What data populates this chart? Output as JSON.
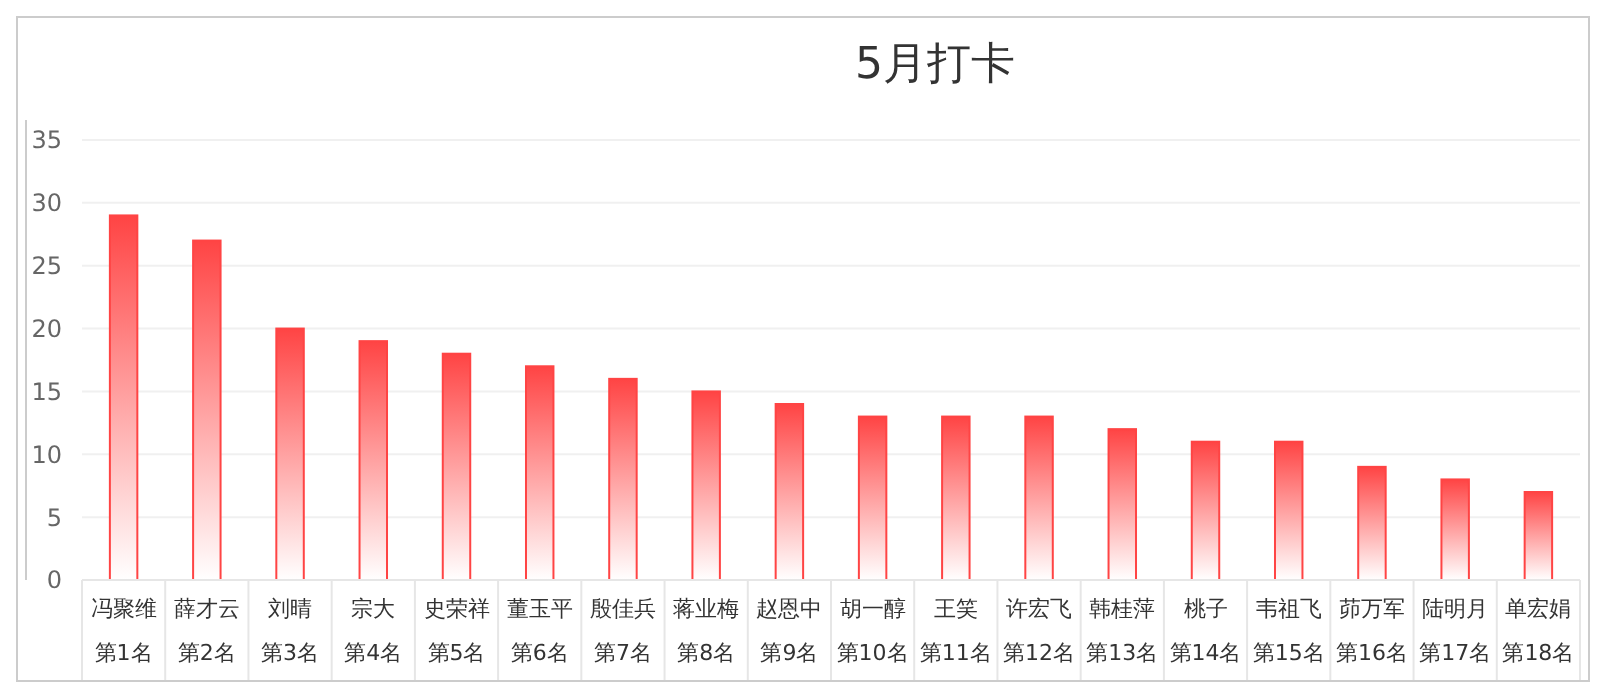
{
  "chart_data": {
    "type": "bar",
    "title": "5月打卡",
    "categories": [
      "冯聚维第1名",
      "薛才云第2名",
      "刘晴第3名",
      "宗大第4名",
      "史荣祥第5名",
      "董玉平第6名",
      "殷佳兵第7名",
      "蒋业梅第8名",
      "赵恩中第9名",
      "胡一醇第10名",
      "王笑第11名",
      "许宏飞第12名",
      "韩桂萍第13名",
      "桃子第14名",
      "韦祖飞第15名",
      "茆万军第16名",
      "陆明月第17名",
      "单宏娟第18名"
    ],
    "values": [
      29,
      27,
      20,
      19,
      18,
      17,
      16,
      15,
      14,
      13,
      13,
      13,
      12,
      11,
      11,
      9,
      8,
      7
    ],
    "color": "#ff4444",
    "ylim": [
      0,
      35
    ],
    "yticks": [
      0,
      5,
      10,
      15,
      20,
      25,
      30,
      35
    ],
    "grid": "y"
  }
}
